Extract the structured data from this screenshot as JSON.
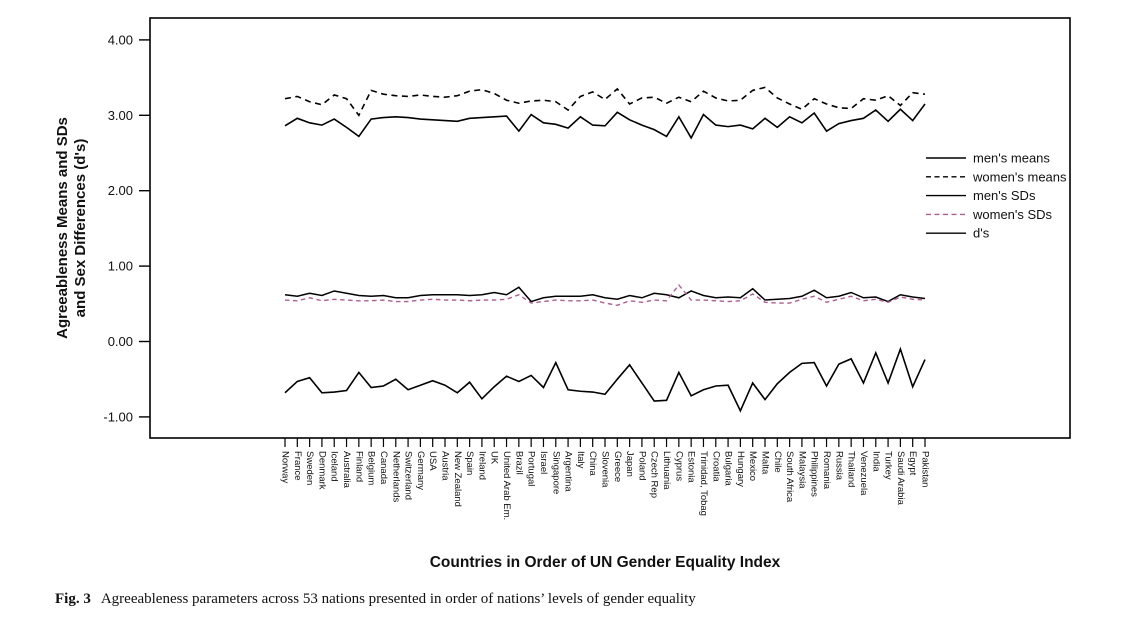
{
  "figure_caption": {
    "label": "Fig. 3",
    "text": "Agreeableness parameters across 53 nations presented in order of nations’ levels of gender equality"
  },
  "chart_data": {
    "type": "line",
    "title": "",
    "xlabel": "Countries in Order of UN Gender Equality Index",
    "ylabel_lines": [
      "Agreeableness Means and SDs",
      "and Sex Differences (d's)"
    ],
    "ylim": [
      -1.35,
      4.3
    ],
    "yticks": [
      "4.00",
      "3.00",
      "2.00",
      "1.00",
      "0.00",
      "-1.00"
    ],
    "ytick_values": [
      4.0,
      3.0,
      2.0,
      1.0,
      0.0,
      -1.0
    ],
    "grid": false,
    "legend_position": "inside-right",
    "axis_color": "#000000",
    "categories": [
      "Norway",
      "France",
      "Sweden",
      "Denmark",
      "Iceland",
      "Australia",
      "Finland",
      "Belgium",
      "Canada",
      "Netherlands",
      "Switzerland",
      "Germany",
      "USA",
      "Austria",
      "New Zealand",
      "Spain",
      "Ireland",
      "UK",
      "United Arab Em.",
      "Brazil",
      "Portugal",
      "Israel",
      "Singapore",
      "Argentina",
      "Italy",
      "China",
      "Slovenia",
      "Greece",
      "Japan",
      "Poland",
      "Czech Rep",
      "Lithuania",
      "Cyprus",
      "Estonia",
      "Trinidad, Tobag",
      "Croatia",
      "Bulgaria",
      "Hungary",
      "Mexico",
      "Malta",
      "Chile",
      "South Africa",
      "Malaysia",
      "Philippines",
      "Romania",
      "Russia",
      "Thailand",
      "Venezuela",
      "India",
      "Turkey",
      "Saudi Arabia",
      "Egypt",
      "Pakistan"
    ],
    "series": [
      {
        "name": "men's means",
        "color": "#000000",
        "dash": "solid",
        "width": 1.6,
        "values": [
          2.86,
          2.96,
          2.9,
          2.87,
          2.95,
          2.84,
          2.72,
          2.95,
          2.97,
          2.98,
          2.97,
          2.95,
          2.94,
          2.93,
          2.92,
          2.96,
          2.97,
          2.98,
          2.99,
          2.79,
          3.01,
          2.9,
          2.88,
          2.83,
          2.98,
          2.87,
          2.86,
          3.04,
          2.94,
          2.87,
          2.81,
          2.72,
          2.98,
          2.7,
          3.01,
          2.87,
          2.85,
          2.87,
          2.82,
          2.96,
          2.84,
          2.98,
          2.9,
          3.03,
          2.79,
          2.89,
          2.93,
          2.96,
          3.07,
          2.92,
          3.08,
          2.93,
          3.15
        ]
      },
      {
        "name": "women's means",
        "color": "#000000",
        "dash": "dashed",
        "width": 1.6,
        "values": [
          3.22,
          3.25,
          3.18,
          3.14,
          3.27,
          3.22,
          3.0,
          3.33,
          3.28,
          3.26,
          3.25,
          3.27,
          3.25,
          3.24,
          3.26,
          3.32,
          3.34,
          3.29,
          3.2,
          3.16,
          3.19,
          3.2,
          3.18,
          3.07,
          3.25,
          3.31,
          3.21,
          3.35,
          3.15,
          3.23,
          3.24,
          3.16,
          3.24,
          3.18,
          3.32,
          3.23,
          3.19,
          3.2,
          3.33,
          3.37,
          3.23,
          3.15,
          3.08,
          3.22,
          3.15,
          3.1,
          3.09,
          3.22,
          3.2,
          3.26,
          3.13,
          3.3,
          3.28
        ]
      },
      {
        "name": "men's SDs",
        "color": "#000000",
        "dash": "solid",
        "width": 1.5,
        "values": [
          0.62,
          0.6,
          0.64,
          0.61,
          0.67,
          0.64,
          0.61,
          0.6,
          0.61,
          0.58,
          0.58,
          0.61,
          0.62,
          0.62,
          0.62,
          0.61,
          0.62,
          0.65,
          0.62,
          0.72,
          0.53,
          0.58,
          0.6,
          0.6,
          0.6,
          0.62,
          0.58,
          0.56,
          0.61,
          0.58,
          0.64,
          0.62,
          0.58,
          0.67,
          0.61,
          0.58,
          0.59,
          0.58,
          0.7,
          0.55,
          0.56,
          0.57,
          0.6,
          0.68,
          0.58,
          0.6,
          0.65,
          0.58,
          0.59,
          0.53,
          0.62,
          0.59,
          0.57
        ]
      },
      {
        "name": "women's SDs",
        "color": "#ad5f94",
        "dash": "dashed",
        "width": 1.4,
        "values": [
          0.55,
          0.54,
          0.58,
          0.54,
          0.56,
          0.55,
          0.54,
          0.54,
          0.55,
          0.53,
          0.53,
          0.55,
          0.56,
          0.55,
          0.55,
          0.54,
          0.55,
          0.55,
          0.56,
          0.62,
          0.51,
          0.53,
          0.55,
          0.54,
          0.54,
          0.55,
          0.51,
          0.48,
          0.54,
          0.52,
          0.55,
          0.54,
          0.75,
          0.55,
          0.55,
          0.54,
          0.53,
          0.54,
          0.63,
          0.52,
          0.51,
          0.51,
          0.56,
          0.6,
          0.52,
          0.56,
          0.6,
          0.54,
          0.56,
          0.52,
          0.59,
          0.56,
          0.55
        ]
      },
      {
        "name": "d's",
        "color": "#000000",
        "dash": "solid",
        "width": 1.6,
        "values": [
          -0.68,
          -0.53,
          -0.48,
          -0.68,
          -0.67,
          -0.65,
          -0.41,
          -0.61,
          -0.59,
          -0.5,
          -0.64,
          -0.58,
          -0.52,
          -0.58,
          -0.68,
          -0.54,
          -0.76,
          -0.6,
          -0.46,
          -0.53,
          -0.45,
          -0.61,
          -0.28,
          -0.64,
          -0.66,
          -0.67,
          -0.7,
          -0.5,
          -0.31,
          -0.55,
          -0.79,
          -0.78,
          -0.41,
          -0.72,
          -0.64,
          -0.59,
          -0.58,
          -0.92,
          -0.55,
          -0.77,
          -0.56,
          -0.41,
          -0.29,
          -0.28,
          -0.59,
          -0.3,
          -0.23,
          -0.55,
          -0.15,
          -0.55,
          -0.1,
          -0.6,
          -0.24
        ]
      }
    ]
  }
}
